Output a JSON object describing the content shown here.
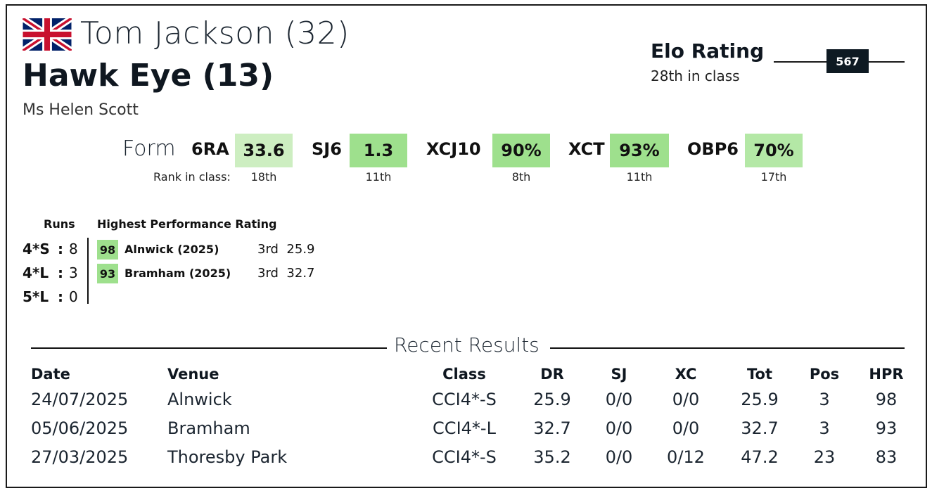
{
  "header": {
    "rider": "Tom Jackson (32)",
    "horse": "Hawk Eye (13)",
    "owner": "Ms Helen Scott",
    "flag_icon": "uk-flag-icon"
  },
  "elo": {
    "title": "Elo Rating",
    "rank": "28th in class",
    "value": "567"
  },
  "form": {
    "label": "Form",
    "rank_label": "Rank in class:",
    "items": [
      {
        "name": "6RA",
        "value": "33.6",
        "rank": "18th",
        "color": "#cdeec1"
      },
      {
        "name": "SJ6",
        "value": "1.3",
        "rank": "11th",
        "color": "#9ee08d"
      },
      {
        "name": "XCJ10",
        "value": "90%",
        "rank": "8th",
        "color": "#9ee08d"
      },
      {
        "name": "XCT",
        "value": "93%",
        "rank": "11th",
        "color": "#9ee08d"
      },
      {
        "name": "OBP6",
        "value": "70%",
        "rank": "17th",
        "color": "#b4e8a6"
      }
    ]
  },
  "runs": {
    "header": "Runs",
    "rows": [
      {
        "level": "4*S",
        "sep": ":",
        "count": "8"
      },
      {
        "level": "4*L",
        "sep": ":",
        "count": "3"
      },
      {
        "level": "5*L",
        "sep": ":",
        "count": "0"
      }
    ]
  },
  "hpr": {
    "header": "Highest Performance Rating",
    "rows": [
      {
        "rating": "98",
        "event": "Alnwick  (2025)",
        "pos": "3rd",
        "score": "25.9",
        "color": "#9ee08d"
      },
      {
        "rating": "93",
        "event": "Bramham  (2025)",
        "pos": "3rd",
        "score": "32.7",
        "color": "#9ee08d"
      }
    ]
  },
  "results": {
    "title": "Recent Results",
    "columns": [
      "Date",
      "Venue",
      "Class",
      "DR",
      "SJ",
      "XC",
      "Tot",
      "Pos",
      "HPR"
    ],
    "rows": [
      [
        "24/07/2025",
        "Alnwick",
        "CCI4*-S",
        "25.9",
        "0/0",
        "0/0",
        "25.9",
        "3",
        "98"
      ],
      [
        "05/06/2025",
        "Bramham",
        "CCI4*-L",
        "32.7",
        "0/0",
        "0/0",
        "32.7",
        "3",
        "93"
      ],
      [
        "27/03/2025",
        "Thoresby Park",
        "CCI4*-S",
        "35.2",
        "0/0",
        "0/12",
        "47.2",
        "23",
        "83"
      ]
    ]
  }
}
